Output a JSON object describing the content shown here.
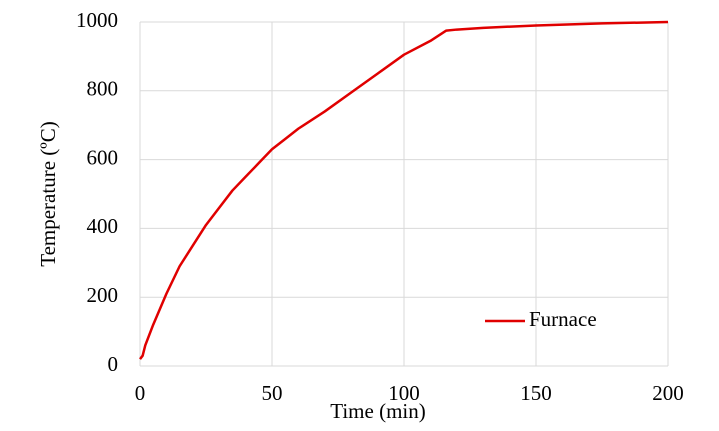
{
  "chart_data": {
    "type": "line",
    "x_label": "Time (min)",
    "y_label": "Temperature (ºC)",
    "x": [
      0,
      1,
      2,
      5,
      10,
      15,
      20,
      25,
      30,
      35,
      40,
      45,
      50,
      55,
      60,
      70,
      80,
      90,
      100,
      110,
      116,
      120,
      130,
      150,
      175,
      200
    ],
    "series": [
      {
        "name": "Furnace",
        "color": "#e00000",
        "values": [
          20,
          30,
          60,
          120,
          210,
          290,
          350,
          410,
          460,
          510,
          550,
          590,
          630,
          660,
          690,
          740,
          795,
          850,
          905,
          945,
          975,
          978,
          983,
          990,
          996,
          1000
        ]
      }
    ],
    "xlim": [
      0,
      200
    ],
    "xticks": [
      0,
      50,
      100,
      150,
      200
    ],
    "ylim": [
      0,
      1000
    ],
    "yticks": [
      0,
      200,
      400,
      600,
      800,
      1000
    ],
    "grid": true,
    "legend": "lower-right"
  }
}
